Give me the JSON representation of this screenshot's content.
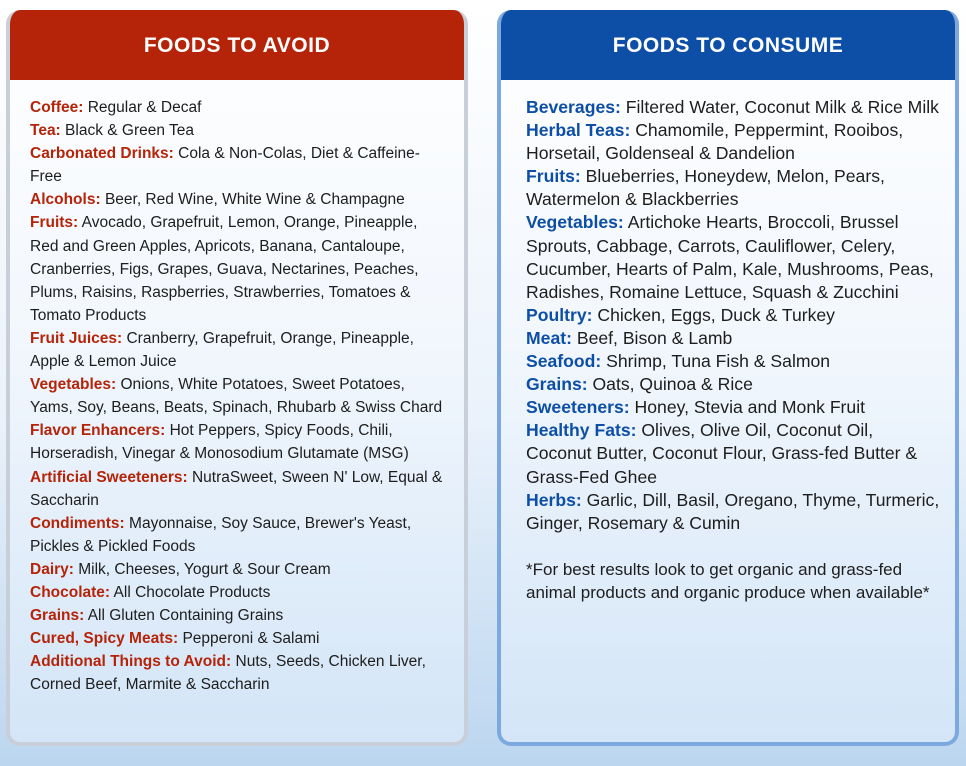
{
  "avoid": {
    "title": "FOODS TO AVOID",
    "items": [
      {
        "label": "Coffee:",
        "text": "Regular & Decaf"
      },
      {
        "label": "Tea:",
        "text": "Black & Green Tea"
      },
      {
        "label": "Carbonated Drinks:",
        "text": "Cola & Non-Colas, Diet & Caffeine-Free"
      },
      {
        "label": "Alcohols:",
        "text": "Beer, Red Wine, White Wine & Champagne"
      },
      {
        "label": "Fruits:",
        "text": "Avocado, Grapefruit, Lemon, Orange, Pineapple, Red and Green Apples, Apricots, Banana, Cantaloupe, Cranberries, Figs, Grapes, Guava, Nectarines, Peaches, Plums, Raisins, Raspberries, Strawberries, Tomatoes & Tomato Products"
      },
      {
        "label": "Fruit Juices:",
        "text": "Cranberry, Grapefruit, Orange, Pineapple, Apple & Lemon Juice"
      },
      {
        "label": "Vegetables:",
        "text": "Onions, White Potatoes, Sweet Potatoes, Yams, Soy, Beans, Beats, Spinach, Rhubarb & Swiss Chard"
      },
      {
        "label": "Flavor Enhancers:",
        "text": "Hot Peppers, Spicy Foods, Chili, Horseradish, Vinegar & Monosodium Glutamate (MSG)"
      },
      {
        "label": "Artificial Sweeteners:",
        "text": "NutraSweet, Sween N' Low, Equal & Saccharin"
      },
      {
        "label": "Condiments:",
        "text": "Mayonnaise, Soy Sauce, Brewer's Yeast, Pickles & Pickled Foods"
      },
      {
        "label": "Dairy:",
        "text": "Milk, Cheeses, Yogurt & Sour Cream"
      },
      {
        "label": "Chocolate:",
        "text": "All Chocolate Products"
      },
      {
        "label": "Grains:",
        "text": "All Gluten Containing Grains"
      },
      {
        "label": "Cured, Spicy Meats:",
        "text": "Pepperoni & Salami"
      },
      {
        "label": "Additional Things to Avoid:",
        "text": "Nuts, Seeds, Chicken Liver, Corned Beef, Marmite & Saccharin"
      }
    ]
  },
  "consume": {
    "title": "FOODS TO CONSUME",
    "items": [
      {
        "label": "Beverages:",
        "text": "Filtered Water, Coconut Milk & Rice Milk"
      },
      {
        "label": "Herbal Teas:",
        "text": "Chamomile, Peppermint, Rooibos, Horsetail, Goldenseal & Dandelion"
      },
      {
        "label": "Fruits:",
        "text": "Blueberries, Honeydew, Melon, Pears, Watermelon & Blackberries"
      },
      {
        "label": "Vegetables:",
        "text": "Artichoke Hearts, Broccoli, Brussel Sprouts, Cabbage, Carrots, Cauliflower, Celery, Cucumber, Hearts of Palm, Kale, Mushrooms, Peas, Radishes, Romaine Lettuce, Squash & Zucchini"
      },
      {
        "label": "Poultry:",
        "text": "Chicken, Eggs, Duck & Turkey"
      },
      {
        "label": "Meat:",
        "text": "Beef, Bison & Lamb"
      },
      {
        "label": "Seafood:",
        "text": "Shrimp, Tuna Fish & Salmon"
      },
      {
        "label": "Grains:",
        "text": "Oats,  Quinoa & Rice"
      },
      {
        "label": "Sweeteners:",
        "text": "Honey, Stevia and Monk Fruit"
      },
      {
        "label": "Healthy Fats:",
        "text": "Olives, Olive Oil, Coconut Oil, Coconut Butter, Coconut Flour, Grass-fed Butter & Grass-Fed Ghee"
      },
      {
        "label": "Herbs:",
        "text": "Garlic, Dill, Basil, Oregano, Thyme, Turmeric, Ginger, Rosemary & Cumin"
      }
    ],
    "note": "*For best results look to get organic and grass-fed animal products and organic produce when available*"
  },
  "colors": {
    "avoid_accent": "#b52409",
    "consume_accent": "#0d4ea6"
  }
}
